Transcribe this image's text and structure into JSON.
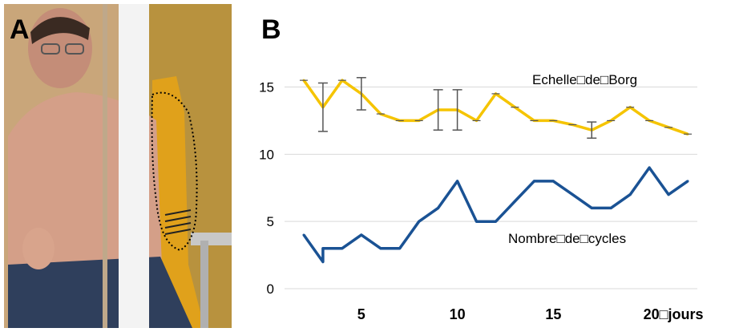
{
  "panels": {
    "left_label": "A",
    "right_label": "B"
  },
  "photo": {
    "description_icon": "photo-placeholder"
  },
  "chart_data": {
    "type": "line",
    "x_tick_labels": [
      "5",
      "10",
      "15",
      "20\u0000jours"
    ],
    "x_ticks": [
      5,
      10,
      15,
      20
    ],
    "y_ticks": [
      0,
      5,
      10,
      15
    ],
    "xlim": [
      1,
      22.5
    ],
    "ylim": [
      0,
      17
    ],
    "grid": true,
    "colors": {
      "borg": "#f5c400",
      "cycles": "#1a5294",
      "grid": "#d9d9d9",
      "error": "#555555"
    },
    "series": [
      {
        "name": "Echelle\u0000de\u0000Borg",
        "x": [
          2,
          3,
          4,
          5,
          6,
          7,
          8,
          9,
          10,
          11,
          12,
          13,
          14,
          15,
          16,
          17,
          18,
          19,
          20,
          21,
          22
        ],
        "values": [
          15.5,
          13.5,
          15.5,
          14.5,
          13,
          12.5,
          12.5,
          13.3,
          13.3,
          12.5,
          14.5,
          13.5,
          12.5,
          12.5,
          12.2,
          11.8,
          12.5,
          13.5,
          12.5,
          12,
          11.5
        ],
        "error": [
          0,
          1.8,
          0,
          1.2,
          0,
          0,
          0,
          1.5,
          1.5,
          0,
          0,
          0,
          0,
          0,
          0,
          0.6,
          0,
          0,
          0,
          0,
          0
        ]
      },
      {
        "name": "Nombre\u0000de\u0000cycles",
        "x": [
          2,
          3,
          3,
          4,
          5,
          6,
          7,
          8,
          9,
          10,
          11,
          12,
          13,
          14,
          15,
          16,
          17,
          18,
          19,
          20,
          21,
          22
        ],
        "values": [
          4,
          2,
          3,
          3,
          4,
          3,
          3,
          5,
          6,
          8,
          5,
          5,
          6.5,
          8,
          8,
          7,
          6,
          6,
          7,
          9,
          7,
          8
        ]
      }
    ]
  }
}
